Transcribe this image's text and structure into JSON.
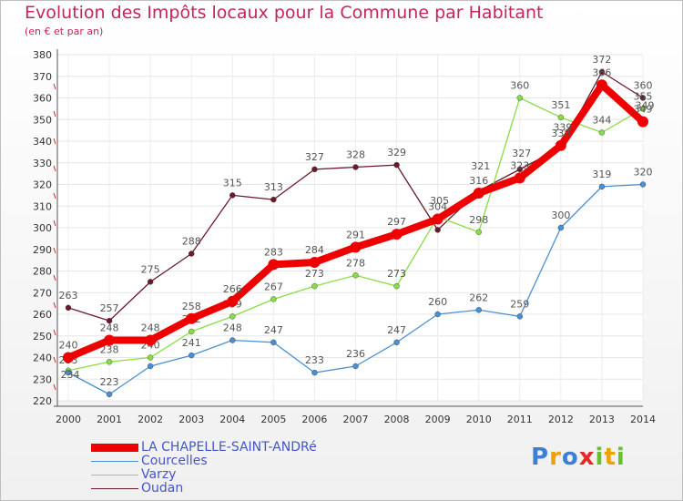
{
  "chart_data": {
    "type": "line",
    "title": "Evolution des Impôts locaux pour la Commune par Habitant",
    "subtitle": "(en € et par an)",
    "xlabel": "",
    "ylabel": "",
    "categories": [
      "2000",
      "2001",
      "2002",
      "2003",
      "2004",
      "2005",
      "2006",
      "2007",
      "2008",
      "2009",
      "2010",
      "2011",
      "2012",
      "2013",
      "2014"
    ],
    "ylim": [
      220,
      380
    ],
    "yticks": [
      220,
      230,
      240,
      250,
      260,
      270,
      280,
      290,
      300,
      310,
      320,
      330,
      340,
      350,
      360,
      370,
      380
    ],
    "grid": true,
    "legend_position": "bottom-left",
    "series": [
      {
        "name": "Oudan",
        "color": "#6b1a2a",
        "values": [
          263,
          257,
          275,
          288,
          315,
          313,
          327,
          328,
          329,
          299,
          317,
          327,
          337,
          372,
          360
        ],
        "labels": [
          "263",
          "257",
          "275",
          "288",
          "315",
          "313",
          "327",
          "328",
          "329",
          "",
          "",
          "",
          "",
          "372",
          "360"
        ]
      },
      {
        "name": "Varzy",
        "color": "#88dd44",
        "values": [
          234,
          238,
          240,
          252,
          259,
          267,
          273,
          278,
          273,
          305,
          298,
          360,
          351,
          344,
          355
        ],
        "labels": [
          "",
          "238",
          "240",
          "252",
          "259",
          "267",
          "273",
          "278",
          "273",
          "",
          "298",
          "360",
          "351",
          "344",
          "355"
        ]
      },
      {
        "name": "Courcelles",
        "color": "#4a90d0",
        "values": [
          233,
          223,
          236,
          241,
          248,
          247,
          233,
          236,
          247,
          260,
          262,
          259,
          300,
          319,
          320
        ],
        "labels": [
          "233",
          "223",
          "",
          "241",
          "248",
          "247",
          "233",
          "236",
          "247",
          "260",
          "262",
          "259",
          "300",
          "319",
          "320"
        ]
      },
      {
        "name": "LA CHAPELLE-SAINT-ANDRé",
        "color": "#ee0000",
        "values": [
          240,
          248,
          248,
          258,
          266,
          283,
          284,
          291,
          297,
          304,
          316,
          323,
          338,
          366,
          349
        ],
        "labels": [
          "240",
          "248",
          "248",
          "258",
          "266",
          "283",
          "284",
          "291",
          "297",
          "304",
          "316",
          "323",
          "338",
          "366",
          "349"
        ]
      }
    ],
    "overlap_labels": [
      "234",
      "305",
      "321",
      "327",
      "339",
      "349"
    ]
  },
  "legend": {
    "items": [
      {
        "label": "LA CHAPELLE-SAINT-ANDRé",
        "color": "#ee0000",
        "width": 9
      },
      {
        "label": "Courcelles",
        "color": "#4a90d0",
        "width": 1.5
      },
      {
        "label": "Varzy",
        "color": "#88dd44",
        "width": 1.5
      },
      {
        "label": "Oudan",
        "color": "#6b1a2a",
        "width": 1.5
      }
    ]
  },
  "logo": {
    "letters": [
      {
        "ch": "P",
        "color": "#3b7fd6"
      },
      {
        "ch": "r",
        "color": "#f0a000"
      },
      {
        "ch": "o",
        "color": "#3b7fd6"
      },
      {
        "ch": "x",
        "color": "#e8262b"
      },
      {
        "ch": "i",
        "color": "#6cbf2a"
      },
      {
        "ch": "t",
        "color": "#f0a000"
      },
      {
        "ch": "i",
        "color": "#6cbf2a"
      }
    ]
  }
}
